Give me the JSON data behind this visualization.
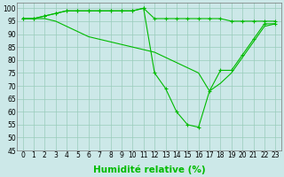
{
  "xlabel": "Humidité relative (%)",
  "x": [
    0,
    1,
    2,
    3,
    4,
    5,
    6,
    7,
    8,
    9,
    10,
    11,
    12,
    13,
    14,
    15,
    16,
    17,
    18,
    19,
    20,
    21,
    22,
    23
  ],
  "line1": [
    96,
    96,
    97,
    98,
    99,
    99,
    99,
    99,
    99,
    99,
    99,
    100,
    96,
    96,
    96,
    96,
    96,
    96,
    96,
    95,
    95,
    95,
    95,
    95
  ],
  "line2": [
    96,
    96,
    97,
    98,
    99,
    99,
    99,
    99,
    99,
    99,
    99,
    100,
    75,
    69,
    60,
    55,
    54,
    68,
    76,
    76,
    82,
    88,
    94,
    94
  ],
  "line3": [
    96,
    96,
    96,
    95,
    93,
    91,
    89,
    88,
    87,
    86,
    85,
    84,
    83,
    81,
    79,
    77,
    75,
    68,
    71,
    75,
    81,
    87,
    93,
    94
  ],
  "line_color": "#00bb00",
  "bg_color": "#cce8e8",
  "grid_color": "#99ccbb",
  "ylim": [
    45,
    102
  ],
  "yticks": [
    45,
    50,
    55,
    60,
    65,
    70,
    75,
    80,
    85,
    90,
    95,
    100
  ],
  "xlim": [
    -0.5,
    23.5
  ],
  "marker": "+",
  "marker_size": 3,
  "linewidth": 0.8,
  "tick_fontsize": 5.5,
  "label_fontsize": 7.5
}
